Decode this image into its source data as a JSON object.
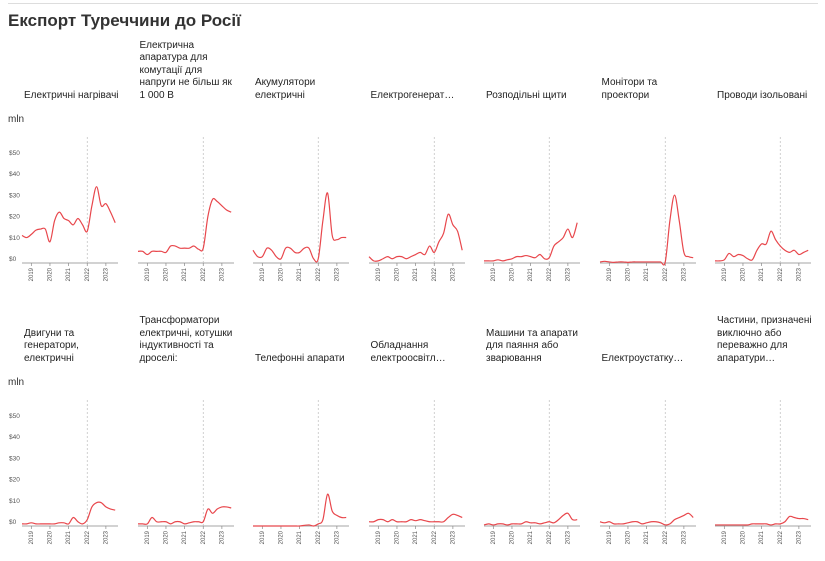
{
  "title": "Експорт Туреччини до Росії",
  "chart_data": [
    {
      "type": "line",
      "title": "Електричні нагрівачі",
      "y_label": "mln",
      "color": "#e8474c",
      "x": [
        2018.5,
        2018.75,
        2019,
        2019.25,
        2019.5,
        2019.75,
        2020,
        2020.25,
        2020.5,
        2020.75,
        2021,
        2021.25,
        2021.5,
        2021.75,
        2022,
        2022.25,
        2022.5,
        2022.75,
        2023,
        2023.25,
        2023.5
      ],
      "values": [
        13,
        12,
        13.5,
        15.5,
        16,
        16,
        10,
        20,
        24,
        21,
        20,
        18,
        21,
        18,
        15,
        27,
        36,
        27,
        28,
        24,
        19
      ],
      "xlim": [
        2018.5,
        2023.65
      ],
      "ylim": [
        0,
        50
      ],
      "xticks": [
        2019,
        2020,
        2021,
        2022,
        2023
      ],
      "yticks": [
        {
          "value": 0,
          "label": "$0"
        },
        {
          "value": 10,
          "label": "$10"
        },
        {
          "value": 20,
          "label": "$20"
        },
        {
          "value": 30,
          "label": "$30"
        },
        {
          "value": 40,
          "label": "$40"
        },
        {
          "value": 50,
          "label": "$50"
        }
      ],
      "reference_x": 2022
    },
    {
      "type": "line",
      "title": "Електрична апаратура для комутації для напруги не більш як 1 000 В",
      "color": "#e8474c",
      "x": [
        2018.5,
        2018.75,
        2019,
        2019.25,
        2019.5,
        2019.75,
        2020,
        2020.25,
        2020.5,
        2020.75,
        2021,
        2021.25,
        2021.5,
        2021.75,
        2022,
        2022.25,
        2022.5,
        2022.75,
        2023,
        2023.25,
        2023.5
      ],
      "values": [
        5.5,
        5.5,
        4,
        5.5,
        5.5,
        5.5,
        5,
        8,
        8,
        7,
        7,
        7,
        8,
        6.5,
        7,
        22,
        30,
        29,
        27,
        25,
        24
      ],
      "xlim": [
        2018.5,
        2023.65
      ],
      "ylim": [
        0,
        50
      ],
      "xticks": [
        2019,
        2020,
        2021,
        2022,
        2023
      ],
      "reference_x": 2022
    },
    {
      "type": "line",
      "title": "Акумулятори електричні",
      "color": "#e8474c",
      "x": [
        2018.5,
        2018.75,
        2019,
        2019.25,
        2019.5,
        2019.75,
        2020,
        2020.25,
        2020.5,
        2020.75,
        2021,
        2021.25,
        2021.5,
        2021.75,
        2022,
        2022.25,
        2022.5,
        2022.75,
        2023,
        2023.25,
        2023.5
      ],
      "values": [
        6,
        3,
        3,
        7,
        6,
        3,
        2,
        7,
        7,
        5,
        5,
        7,
        7,
        2,
        2,
        20,
        33,
        13,
        11,
        12,
        12
      ],
      "xlim": [
        2018.5,
        2023.65
      ],
      "ylim": [
        0,
        50
      ],
      "xticks": [
        2019,
        2020,
        2021,
        2022,
        2023
      ],
      "reference_x": 2022
    },
    {
      "type": "line",
      "title": "Електрогенерат…",
      "color": "#e8474c",
      "x": [
        2018.5,
        2018.75,
        2019,
        2019.25,
        2019.5,
        2019.75,
        2020,
        2020.25,
        2020.5,
        2020.75,
        2021,
        2021.25,
        2021.5,
        2021.75,
        2022,
        2022.25,
        2022.5,
        2022.75,
        2023,
        2023.25,
        2023.5
      ],
      "values": [
        3,
        1,
        1,
        2,
        3,
        2,
        3,
        3,
        2,
        3,
        4,
        5,
        4,
        8,
        5,
        10,
        14,
        23,
        18,
        15,
        6
      ],
      "xlim": [
        2018.5,
        2023.65
      ],
      "ylim": [
        0,
        50
      ],
      "xticks": [
        2019,
        2020,
        2021,
        2022,
        2023
      ],
      "reference_x": 2022
    },
    {
      "type": "line",
      "title": "Розподільні щити",
      "color": "#e8474c",
      "x": [
        2018.5,
        2018.75,
        2019,
        2019.25,
        2019.5,
        2019.75,
        2020,
        2020.25,
        2020.5,
        2020.75,
        2021,
        2021.25,
        2021.5,
        2021.75,
        2022,
        2022.25,
        2022.5,
        2022.75,
        2023,
        2023.25,
        2023.5
      ],
      "values": [
        1,
        1,
        1,
        1.5,
        1,
        1.5,
        2,
        3,
        3,
        3.5,
        3,
        2.5,
        4,
        2,
        2.5,
        8,
        10,
        12,
        16,
        12,
        19
      ],
      "xlim": [
        2018.5,
        2023.65
      ],
      "ylim": [
        0,
        50
      ],
      "xticks": [
        2019,
        2020,
        2021,
        2022,
        2023
      ],
      "reference_x": 2022
    },
    {
      "type": "line",
      "title": "Монітори та проектори",
      "color": "#e8474c",
      "x": [
        2018.5,
        2018.75,
        2019,
        2019.25,
        2019.5,
        2019.75,
        2020,
        2020.25,
        2020.5,
        2020.75,
        2021,
        2021.25,
        2021.5,
        2021.75,
        2022,
        2022.25,
        2022.5,
        2022.75,
        2023,
        2023.25,
        2023.5
      ],
      "values": [
        0.5,
        0.8,
        0.5,
        0.3,
        0.5,
        0.5,
        0.3,
        0.5,
        0.5,
        0.5,
        0.5,
        0.5,
        0.5,
        0.5,
        0.5,
        20,
        32,
        20,
        5,
        3,
        2.5
      ],
      "xlim": [
        2018.5,
        2023.65
      ],
      "ylim": [
        0,
        50
      ],
      "xticks": [
        2019,
        2020,
        2021,
        2022,
        2023
      ],
      "reference_x": 2022
    },
    {
      "type": "line",
      "title": "Проводи ізольовані",
      "color": "#e8474c",
      "x": [
        2018.5,
        2018.75,
        2019,
        2019.25,
        2019.5,
        2019.75,
        2020,
        2020.25,
        2020.5,
        2020.75,
        2021,
        2021.25,
        2021.5,
        2021.75,
        2022,
        2022.25,
        2022.5,
        2022.75,
        2023,
        2023.25,
        2023.5
      ],
      "values": [
        1,
        1,
        1.5,
        4.5,
        3,
        4,
        3.5,
        2,
        1.5,
        6,
        9,
        9,
        15,
        11,
        8,
        6,
        5,
        6,
        4,
        5,
        6
      ],
      "xlim": [
        2018.5,
        2023.65
      ],
      "ylim": [
        0,
        50
      ],
      "xticks": [
        2019,
        2020,
        2021,
        2022,
        2023
      ],
      "reference_x": 2022
    },
    {
      "type": "line",
      "title": "Двигуни та генератори, електричні",
      "y_label": "mln",
      "color": "#e8474c",
      "x": [
        2018.5,
        2018.75,
        2019,
        2019.25,
        2019.5,
        2019.75,
        2020,
        2020.25,
        2020.5,
        2020.75,
        2021,
        2021.25,
        2021.5,
        2021.75,
        2022,
        2022.25,
        2022.5,
        2022.75,
        2023,
        2023.25,
        2023.5
      ],
      "values": [
        1,
        1,
        1.5,
        1,
        1,
        1,
        1,
        1,
        1.5,
        1.5,
        1,
        4,
        2,
        1,
        3,
        9,
        11,
        11,
        9,
        8,
        7.5
      ],
      "xlim": [
        2018.5,
        2023.65
      ],
      "ylim": [
        0,
        50
      ],
      "xticks": [
        2019,
        2020,
        2021,
        2022,
        2023
      ],
      "yticks": [
        {
          "value": 0,
          "label": "$0"
        },
        {
          "value": 10,
          "label": "$10"
        },
        {
          "value": 20,
          "label": "$20"
        },
        {
          "value": 30,
          "label": "$30"
        },
        {
          "value": 40,
          "label": "$40"
        },
        {
          "value": 50,
          "label": "$50"
        }
      ],
      "reference_x": 2022
    },
    {
      "type": "line",
      "title": "Трансформатори електричні, котушки індуктивності та дроселі:",
      "color": "#e8474c",
      "x": [
        2018.5,
        2018.75,
        2019,
        2019.25,
        2019.5,
        2019.75,
        2020,
        2020.25,
        2020.5,
        2020.75,
        2021,
        2021.25,
        2021.5,
        2021.75,
        2022,
        2022.25,
        2022.5,
        2022.75,
        2023,
        2023.25,
        2023.5
      ],
      "values": [
        1,
        1,
        1,
        4,
        2,
        2,
        2,
        1,
        2,
        2,
        1,
        1.5,
        2,
        2,
        2,
        8,
        6,
        8,
        9,
        9,
        8.5
      ],
      "xlim": [
        2018.5,
        2023.65
      ],
      "ylim": [
        0,
        50
      ],
      "xticks": [
        2019,
        2020,
        2021,
        2022,
        2023
      ],
      "reference_x": 2022
    },
    {
      "type": "line",
      "title": "Телефонні апарати",
      "color": "#e8474c",
      "x": [
        2018.5,
        2018.75,
        2019,
        2019.25,
        2019.5,
        2019.75,
        2020,
        2020.25,
        2020.5,
        2020.75,
        2021,
        2021.25,
        2021.5,
        2021.75,
        2022,
        2022.25,
        2022.5,
        2022.75,
        2023,
        2023.25,
        2023.5
      ],
      "values": [
        0,
        0,
        0,
        0,
        0,
        0,
        0,
        0,
        0,
        0,
        0,
        0.3,
        0.5,
        0,
        1,
        3,
        15,
        7,
        5,
        4,
        4
      ],
      "xlim": [
        2018.5,
        2023.65
      ],
      "ylim": [
        0,
        50
      ],
      "xticks": [
        2019,
        2020,
        2021,
        2022,
        2023
      ],
      "reference_x": 2022
    },
    {
      "type": "line",
      "title": "Обладнання електроосвітл…",
      "color": "#e8474c",
      "x": [
        2018.5,
        2018.75,
        2019,
        2019.25,
        2019.5,
        2019.75,
        2020,
        2020.25,
        2020.5,
        2020.75,
        2021,
        2021.25,
        2021.5,
        2021.75,
        2022,
        2022.25,
        2022.5,
        2022.75,
        2023,
        2023.25,
        2023.5
      ],
      "values": [
        2,
        2,
        3,
        3,
        2,
        3,
        2,
        2,
        2,
        3,
        2.5,
        3,
        2.5,
        2,
        2,
        2,
        2,
        4,
        5.5,
        5,
        4
      ],
      "xlim": [
        2018.5,
        2023.65
      ],
      "ylim": [
        0,
        50
      ],
      "xticks": [
        2019,
        2020,
        2021,
        2022,
        2023
      ],
      "reference_x": 2022
    },
    {
      "type": "line",
      "title": "Машини та апарати для паяння або зварювання",
      "color": "#e8474c",
      "x": [
        2018.5,
        2018.75,
        2019,
        2019.25,
        2019.5,
        2019.75,
        2020,
        2020.25,
        2020.5,
        2020.75,
        2021,
        2021.25,
        2021.5,
        2021.75,
        2022,
        2022.25,
        2022.5,
        2022.75,
        2023,
        2023.25,
        2023.5
      ],
      "values": [
        0.5,
        1,
        0.5,
        1,
        1,
        0.5,
        1,
        1,
        1,
        2,
        1.5,
        1.5,
        1,
        1.5,
        2,
        1.5,
        3,
        5,
        6,
        3,
        3
      ],
      "xlim": [
        2018.5,
        2023.65
      ],
      "ylim": [
        0,
        50
      ],
      "xticks": [
        2019,
        2020,
        2021,
        2022,
        2023
      ],
      "reference_x": 2022
    },
    {
      "type": "line",
      "title": "Електроустатку…",
      "color": "#e8474c",
      "x": [
        2018.5,
        2018.75,
        2019,
        2019.25,
        2019.5,
        2019.75,
        2020,
        2020.25,
        2020.5,
        2020.75,
        2021,
        2021.25,
        2021.5,
        2021.75,
        2022,
        2022.25,
        2022.5,
        2022.75,
        2023,
        2023.25,
        2023.5
      ],
      "values": [
        2,
        1.5,
        2,
        1,
        1,
        1,
        1.5,
        2,
        2,
        1,
        1.5,
        2,
        2,
        1.5,
        0.5,
        1,
        3,
        4,
        5,
        6,
        4
      ],
      "xlim": [
        2018.5,
        2023.65
      ],
      "ylim": [
        0,
        50
      ],
      "xticks": [
        2019,
        2020,
        2021,
        2022,
        2023
      ],
      "reference_x": 2022
    },
    {
      "type": "line",
      "title": "Частини, призначені виключно або переважно для апаратури…",
      "color": "#e8474c",
      "x": [
        2018.5,
        2018.75,
        2019,
        2019.25,
        2019.5,
        2019.75,
        2020,
        2020.25,
        2020.5,
        2020.75,
        2021,
        2021.25,
        2021.5,
        2021.75,
        2022,
        2022.25,
        2022.5,
        2022.75,
        2023,
        2023.25,
        2023.5
      ],
      "values": [
        0.5,
        0.5,
        0.5,
        0.5,
        0.5,
        0.5,
        0.5,
        0.5,
        1,
        1,
        1,
        1,
        0.5,
        1,
        1,
        2,
        4.5,
        4,
        3.5,
        3.5,
        3
      ],
      "xlim": [
        2018.5,
        2023.65
      ],
      "ylim": [
        0,
        50
      ],
      "xticks": [
        2019,
        2020,
        2021,
        2022,
        2023
      ],
      "reference_x": 2022
    }
  ]
}
